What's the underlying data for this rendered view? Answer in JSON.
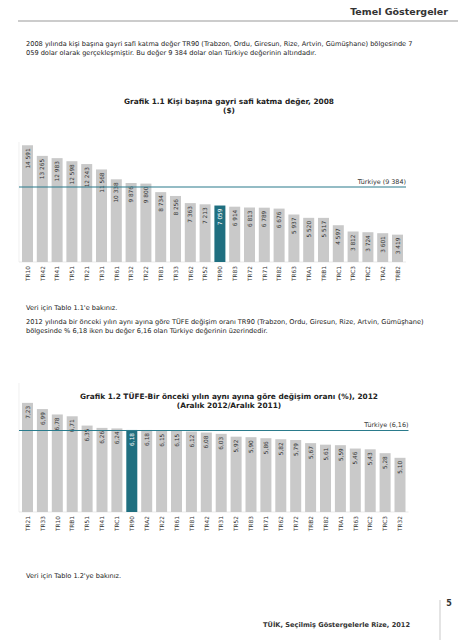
{
  "header": {
    "title": "Temel Göstergeler"
  },
  "paragraphs": [
    "2008 yılında kişi başına gayri safi katma değer TR90 (Trabzon, Ordu, Giresun, Rize, Artvin, Gümüşhane) bölgesinde 7 059 dolar olarak gerçekleşmiştir. Bu değer 9 384 dolar olan Türkiye değerinin altındadır.",
    "2012 yılında bir önceki yılın aynı ayına göre TÜFE değişim oranı TR90 (Trabzon, Ordu, Giresun, Rize, Artvin, Gümüşhane) bölgesinde % 6,18 iken bu değer 6,16 olan Türkiye değerinin üzerindedir."
  ],
  "notes": [
    "Veri için Tablo 1.1'e bakınız.",
    "Veri için Tablo 1.2'ye bakınız."
  ],
  "footer": {
    "text": "TÜİK, Seçilmiş Göstergelerle Rize, 2012",
    "page_number": "5"
  },
  "chart_data": [
    {
      "type": "bar",
      "title": "Grafik 1.1 Kişi başına gayri safi katma değer, 2008",
      "subtitle": "($)",
      "categories": [
        "TR10",
        "TR42",
        "TR41",
        "TR51",
        "TR21",
        "TR31",
        "TR61",
        "TR32",
        "TR22",
        "TR81",
        "TR33",
        "TR62",
        "TR52",
        "TR90",
        "TR83",
        "TR72",
        "TR71",
        "TR82",
        "TR63",
        "TRA1",
        "TRB1",
        "TRC1",
        "TRC3",
        "TRC2",
        "TRA2",
        "TRB2"
      ],
      "values": [
        14591,
        13265,
        12983,
        12598,
        12243,
        11568,
        10338,
        9876,
        9800,
        8734,
        8256,
        7363,
        7213,
        7059,
        6914,
        6813,
        6789,
        6676,
        5937,
        5520,
        5517,
        4597,
        3812,
        3724,
        3601,
        3419
      ],
      "value_labels": [
        "14 591",
        "13 265",
        "12 983",
        "12 598",
        "12 243",
        "11 568",
        "10 338",
        "9 876",
        "9 800",
        "8 734",
        "8 256",
        "7 363",
        "7 213",
        "7 059",
        "6 914",
        "6 813",
        "6 789",
        "6 676",
        "5 937",
        "5 520",
        "5 517",
        "4 597",
        "3 812",
        "3 724",
        "3 601",
        "3 419"
      ],
      "colors": [
        "#c9c9c9",
        "#c9c9c9",
        "#c9c9c9",
        "#c9c9c9",
        "#c9c9c9",
        "#c9c9c9",
        "#c9c9c9",
        "#c9c9c9",
        "#c9c9c9",
        "#c9c9c9",
        "#c9c9c9",
        "#c9c9c9",
        "#c9c9c9",
        "#1f6f80",
        "#c9c9c9",
        "#c9c9c9",
        "#c9c9c9",
        "#c9c9c9",
        "#c9c9c9",
        "#c9c9c9",
        "#c9c9c9",
        "#c9c9c9",
        "#c9c9c9",
        "#c9c9c9",
        "#c9c9c9",
        "#c9c9c9"
      ],
      "ylim": [
        0,
        15000
      ],
      "tick_labels": "x",
      "data_labels": true,
      "grid": false,
      "annotations": [
        {
          "label": "Türkiye (9 384)",
          "value": 9384
        }
      ]
    },
    {
      "type": "bar",
      "title": "Grafik 1.2 TÜFE-Bir önceki yılın aynı ayına göre değişim oranı (%), 2012",
      "subtitle": "(Aralık 2012/Aralık 2011)",
      "categories": [
        "TR21",
        "TR33",
        "TR10",
        "TRB1",
        "TR51",
        "TR41",
        "TRC1",
        "TR90",
        "TRA2",
        "TR22",
        "TR61",
        "TR81",
        "TR42",
        "TR31",
        "TR52",
        "TR83",
        "TR71",
        "TR62",
        "TR72",
        "TRB2",
        "TR82",
        "TRA1",
        "TR63",
        "TRC2",
        "TRC3",
        "TR32"
      ],
      "values": [
        7.23,
        6.99,
        6.78,
        6.71,
        6.35,
        6.26,
        6.24,
        6.18,
        6.18,
        6.15,
        6.15,
        6.12,
        6.08,
        6.03,
        5.92,
        5.9,
        5.86,
        5.82,
        5.79,
        5.67,
        5.61,
        5.59,
        5.46,
        5.43,
        5.28,
        5.1
      ],
      "value_labels": [
        "7,23",
        "6,99",
        "6,78",
        "6,71",
        "6,35",
        "6,26",
        "6,24",
        "6,18",
        "6,18",
        "6,15",
        "6,15",
        "6,12",
        "6,08",
        "6,03",
        "5,92",
        "5,90",
        "5,86",
        "5,82",
        "5,79",
        "5,67",
        "5,61",
        "5,59",
        "5,46",
        "5,43",
        "5,28",
        "5,10"
      ],
      "colors": [
        "#c9c9c9",
        "#c9c9c9",
        "#c9c9c9",
        "#c9c9c9",
        "#c9c9c9",
        "#c9c9c9",
        "#c9c9c9",
        "#1f6f80",
        "#c9c9c9",
        "#c9c9c9",
        "#c9c9c9",
        "#c9c9c9",
        "#c9c9c9",
        "#c9c9c9",
        "#c9c9c9",
        "#c9c9c9",
        "#c9c9c9",
        "#c9c9c9",
        "#c9c9c9",
        "#c9c9c9",
        "#c9c9c9",
        "#c9c9c9",
        "#c9c9c9",
        "#c9c9c9",
        "#c9c9c9",
        "#c9c9c9"
      ],
      "ylim": [
        3,
        8
      ],
      "tick_labels": "x",
      "data_labels": true,
      "grid": false,
      "annotations": [
        {
          "label": "Türkiye (6,16)",
          "value": 6.16
        }
      ]
    }
  ]
}
